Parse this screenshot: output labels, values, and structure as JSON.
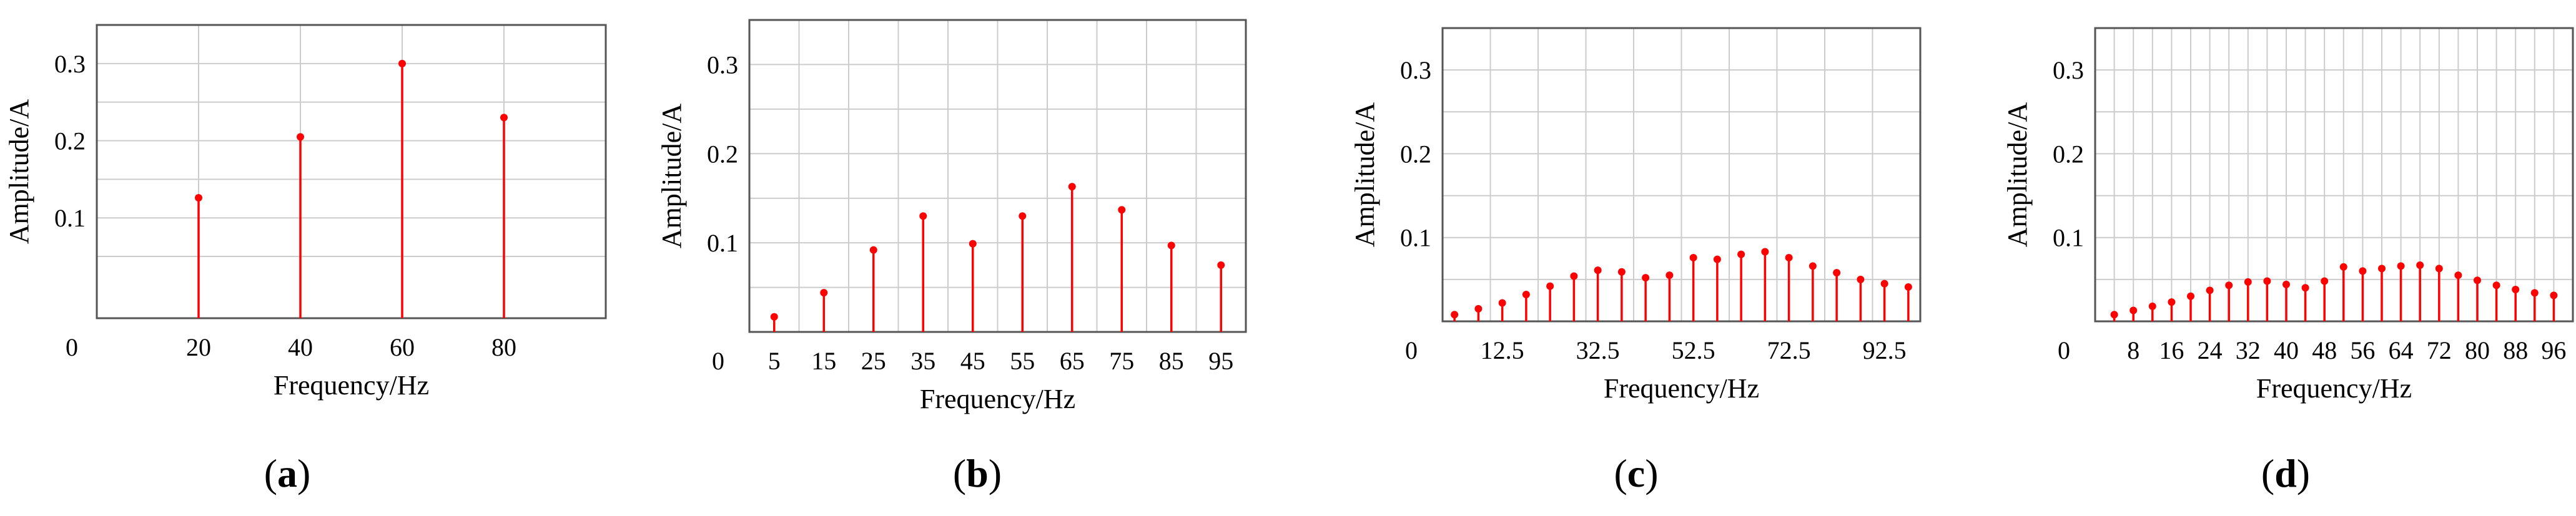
{
  "theme": {
    "stem_color": "#ff0000",
    "grid_color": "#cccccc",
    "frame_color": "#555555"
  },
  "chart_data": [
    {
      "type": "stem",
      "panel": "a",
      "xlabel": "Frequency/Hz",
      "ylabel": "Amplitude/A",
      "xlim": [
        0,
        100
      ],
      "ylim": [
        -0.03,
        0.35
      ],
      "xticks": [
        20,
        40,
        60,
        80
      ],
      "xtick_labels": [
        "20",
        "40",
        "60",
        "80"
      ],
      "yticks": [
        0.1,
        0.2,
        0.3
      ],
      "ytick_labels": [
        "0.1",
        "0.2",
        "0.3"
      ],
      "origin_label": "0",
      "x_gridlines": [
        20,
        40,
        60,
        80
      ],
      "y_gridlines": [
        0.05,
        0.1,
        0.15,
        0.2,
        0.25,
        0.3
      ],
      "grid": true,
      "x": [
        20,
        40,
        60,
        80
      ],
      "values": [
        0.126,
        0.205,
        0.3,
        0.23
      ]
    },
    {
      "type": "stem",
      "panel": "b",
      "xlabel": "Frequency/Hz",
      "ylabel": "Amplitude/A",
      "xlim": [
        0,
        100
      ],
      "ylim": [
        0,
        0.35
      ],
      "xticks": [
        5,
        15,
        25,
        35,
        45,
        55,
        65,
        75,
        85,
        95
      ],
      "xtick_labels": [
        "5",
        "15",
        "25",
        "35",
        "45",
        "55",
        "65",
        "75",
        "85",
        "95"
      ],
      "yticks": [
        0.1,
        0.2,
        0.3
      ],
      "ytick_labels": [
        "0.1",
        "0.2",
        "0.3"
      ],
      "origin_label": "0",
      "x_gridlines": [
        10,
        20,
        30,
        40,
        50,
        60,
        70,
        80,
        90
      ],
      "y_gridlines": [
        0.05,
        0.1,
        0.15,
        0.2,
        0.25,
        0.3
      ],
      "grid": true,
      "x": [
        5,
        15,
        25,
        35,
        45,
        55,
        65,
        75,
        85,
        95
      ],
      "values": [
        0.017,
        0.044,
        0.092,
        0.13,
        0.099,
        0.13,
        0.163,
        0.137,
        0.097,
        0.075
      ]
    },
    {
      "type": "stem",
      "panel": "c",
      "xlabel": "Frequency/Hz",
      "ylabel": "Amplitude/A",
      "xlim": [
        0,
        100
      ],
      "ylim": [
        0,
        0.35
      ],
      "xticks": [
        12.5,
        32.5,
        52.5,
        72.5,
        92.5
      ],
      "xtick_labels": [
        "12.5",
        "32.5",
        "52.5",
        "72.5",
        "92.5"
      ],
      "yticks": [
        0.1,
        0.2,
        0.3
      ],
      "ytick_labels": [
        "0.1",
        "0.2",
        "0.3"
      ],
      "origin_label": "0",
      "x_gridlines": [
        10,
        20,
        30,
        40,
        50,
        60,
        70,
        80,
        90
      ],
      "y_gridlines": [
        0.05,
        0.1,
        0.15,
        0.2,
        0.25,
        0.3
      ],
      "grid": true,
      "x": [
        2.5,
        7.5,
        12.5,
        17.5,
        22.5,
        27.5,
        32.5,
        37.5,
        42.5,
        47.5,
        52.5,
        57.5,
        62.5,
        67.5,
        72.5,
        77.5,
        82.5,
        87.5,
        92.5,
        97.5
      ],
      "values": [
        0.008,
        0.015,
        0.022,
        0.032,
        0.042,
        0.054,
        0.061,
        0.059,
        0.052,
        0.055,
        0.076,
        0.074,
        0.08,
        0.083,
        0.076,
        0.066,
        0.058,
        0.05,
        0.045,
        0.041
      ]
    },
    {
      "type": "stem",
      "panel": "d",
      "xlabel": "Frequency/Hz",
      "ylabel": "Amplitude/A",
      "xlim": [
        0,
        100
      ],
      "ylim": [
        0,
        0.35
      ],
      "xticks": [
        8,
        16,
        24,
        32,
        40,
        48,
        56,
        64,
        72,
        80,
        88,
        96
      ],
      "xtick_labels": [
        "8",
        "16",
        "24",
        "32",
        "40",
        "48",
        "56",
        "64",
        "72",
        "80",
        "88",
        "96"
      ],
      "yticks": [
        0.1,
        0.2,
        0.3
      ],
      "ytick_labels": [
        "0.1",
        "0.2",
        "0.3"
      ],
      "origin_label": "0",
      "x_gridlines": [
        4,
        8,
        12,
        16,
        20,
        24,
        28,
        32,
        36,
        40,
        44,
        48,
        52,
        56,
        60,
        64,
        68,
        72,
        76,
        80,
        84,
        88,
        92,
        96
      ],
      "y_gridlines": [
        0.05,
        0.1,
        0.15,
        0.2,
        0.25,
        0.3
      ],
      "grid": true,
      "x": [
        4,
        8,
        12,
        16,
        20,
        24,
        28,
        32,
        36,
        40,
        44,
        48,
        52,
        56,
        60,
        64,
        68,
        72,
        76,
        80,
        84,
        88,
        92,
        96
      ],
      "values": [
        0.008,
        0.013,
        0.018,
        0.023,
        0.03,
        0.037,
        0.043,
        0.047,
        0.048,
        0.044,
        0.04,
        0.048,
        0.065,
        0.06,
        0.063,
        0.066,
        0.067,
        0.063,
        0.055,
        0.049,
        0.043,
        0.038,
        0.034,
        0.031
      ]
    }
  ],
  "panel_labels": [
    {
      "open": "(",
      "letter": "a",
      "close": ")"
    },
    {
      "open": "(",
      "letter": "b",
      "close": ")"
    },
    {
      "open": "(",
      "letter": "c",
      "close": ")"
    },
    {
      "open": "(",
      "letter": "d",
      "close": ")"
    }
  ]
}
